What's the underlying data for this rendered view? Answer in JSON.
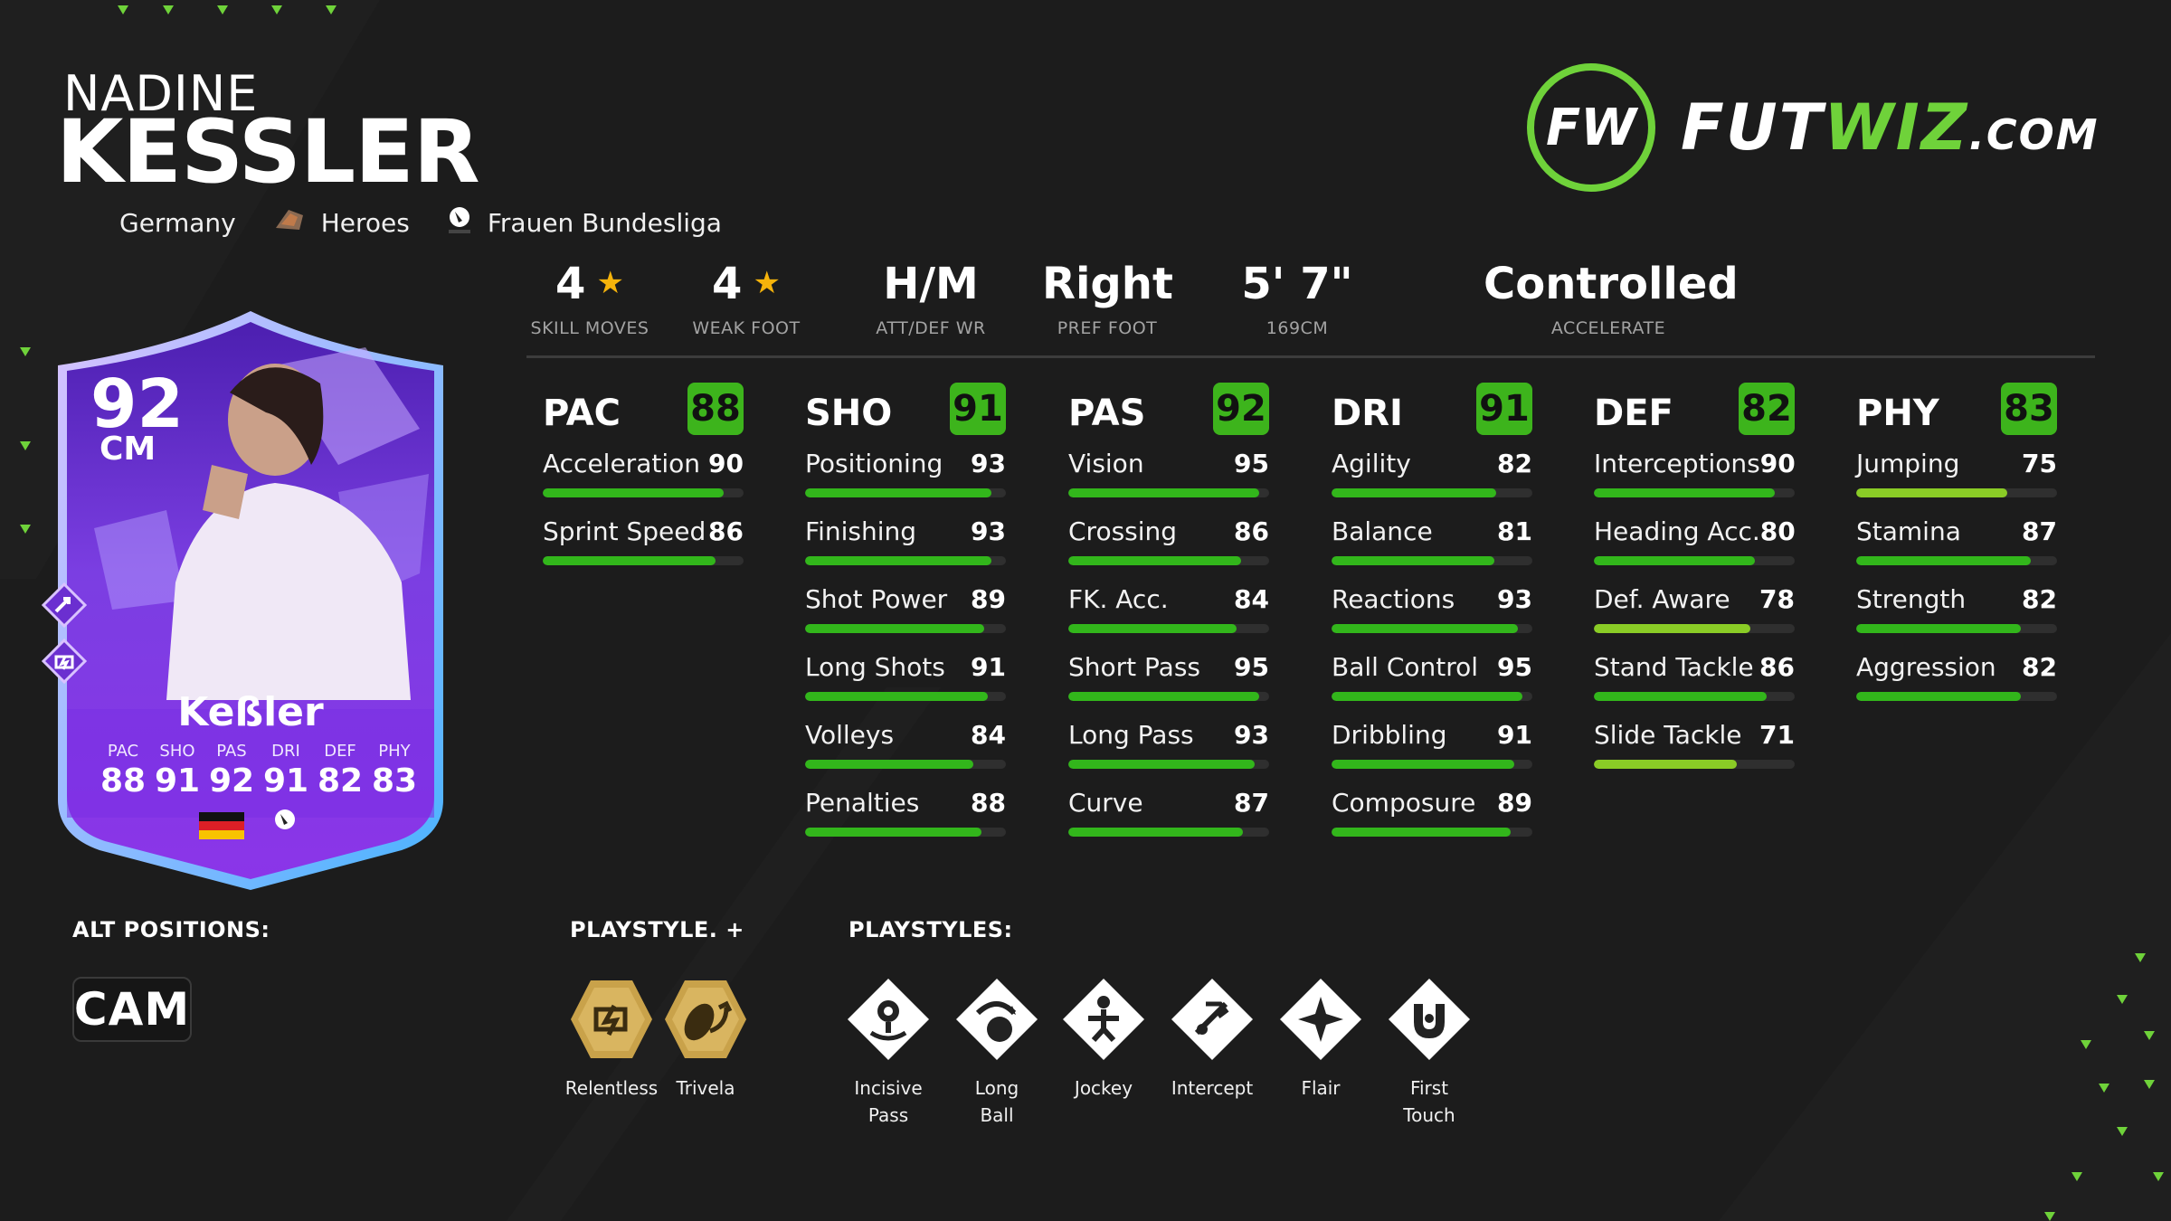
{
  "player": {
    "first_name": "NADINE",
    "last_name": "KESSLER",
    "nation": "Germany",
    "club": "Heroes",
    "league": "Frauen Bundesliga"
  },
  "logo": {
    "text_main": "FUT",
    "text_accent": "WIZ",
    "text_domain": ".COM",
    "badge": "FW"
  },
  "card": {
    "rating": "92",
    "position": "CM",
    "name": "Keßler",
    "stats": [
      {
        "label": "PAC",
        "value": "88"
      },
      {
        "label": "SHO",
        "value": "91"
      },
      {
        "label": "PAS",
        "value": "92"
      },
      {
        "label": "DRI",
        "value": "91"
      },
      {
        "label": "DEF",
        "value": "82"
      },
      {
        "label": "PHY",
        "value": "83"
      }
    ],
    "colors": {
      "card_primary": "#7a2ee0",
      "card_border": "#b48cff",
      "card_glow": "#4fa8ff"
    }
  },
  "attributes": [
    {
      "value": "4",
      "star": "★",
      "label": "SKILL MOVES"
    },
    {
      "value": "4",
      "star": "★",
      "label": "WEAK FOOT"
    },
    {
      "value": "H/M",
      "label": "ATT/DEF WR"
    },
    {
      "value": "Right",
      "label": "PREF FOOT"
    },
    {
      "value": "5' 7\"",
      "label": "169CM"
    },
    {
      "value": "Controlled",
      "label": "ACCELERATE"
    }
  ],
  "columns": [
    {
      "cat": "PAC",
      "rating": "88",
      "stats": [
        {
          "name": "Acceleration",
          "value": "90",
          "pct": 90
        },
        {
          "name": "Sprint Speed",
          "value": "86",
          "pct": 86
        }
      ]
    },
    {
      "cat": "SHO",
      "rating": "91",
      "stats": [
        {
          "name": "Positioning",
          "value": "93",
          "pct": 93
        },
        {
          "name": "Finishing",
          "value": "93",
          "pct": 93
        },
        {
          "name": "Shot Power",
          "value": "89",
          "pct": 89
        },
        {
          "name": "Long Shots",
          "value": "91",
          "pct": 91
        },
        {
          "name": "Volleys",
          "value": "84",
          "pct": 84
        },
        {
          "name": "Penalties",
          "value": "88",
          "pct": 88
        }
      ]
    },
    {
      "cat": "PAS",
      "rating": "92",
      "stats": [
        {
          "name": "Vision",
          "value": "95",
          "pct": 95
        },
        {
          "name": "Crossing",
          "value": "86",
          "pct": 86
        },
        {
          "name": "FK. Acc.",
          "value": "84",
          "pct": 84
        },
        {
          "name": "Short Pass",
          "value": "95",
          "pct": 95
        },
        {
          "name": "Long Pass",
          "value": "93",
          "pct": 93
        },
        {
          "name": "Curve",
          "value": "87",
          "pct": 87
        }
      ]
    },
    {
      "cat": "DRI",
      "rating": "91",
      "stats": [
        {
          "name": "Agility",
          "value": "82",
          "pct": 82
        },
        {
          "name": "Balance",
          "value": "81",
          "pct": 81
        },
        {
          "name": "Reactions",
          "value": "93",
          "pct": 93
        },
        {
          "name": "Ball Control",
          "value": "95",
          "pct": 95
        },
        {
          "name": "Dribbling",
          "value": "91",
          "pct": 91
        },
        {
          "name": "Composure",
          "value": "89",
          "pct": 89
        }
      ]
    },
    {
      "cat": "DEF",
      "rating": "82",
      "stats": [
        {
          "name": "Interceptions",
          "value": "90",
          "pct": 90
        },
        {
          "name": "Heading Acc.",
          "value": "80",
          "pct": 80
        },
        {
          "name": "Def. Aware",
          "value": "78",
          "pct": 78
        },
        {
          "name": "Stand Tackle",
          "value": "86",
          "pct": 86
        },
        {
          "name": "Slide Tackle",
          "value": "71",
          "pct": 71
        }
      ]
    },
    {
      "cat": "PHY",
      "rating": "83",
      "stats": [
        {
          "name": "Jumping",
          "value": "75",
          "pct": 75
        },
        {
          "name": "Stamina",
          "value": "87",
          "pct": 87
        },
        {
          "name": "Strength",
          "value": "82",
          "pct": 82
        },
        {
          "name": "Aggression",
          "value": "82",
          "pct": 82
        }
      ]
    }
  ],
  "bottom": {
    "alt_positions_label": "ALT POSITIONS:",
    "alt_positions": [
      "CAM"
    ],
    "playstyle_plus_label": "PLAYSTYLE. +",
    "playstyles_plus": [
      {
        "name": "Relentless",
        "icon": "relentless-icon"
      },
      {
        "name": "Trivela",
        "icon": "trivela-icon"
      }
    ],
    "playstyles_label": "PLAYSTYLES:",
    "playstyles": [
      {
        "line1": "Incisive",
        "line2": "Pass",
        "icon": "incisive-pass-icon"
      },
      {
        "line1": "Long",
        "line2": "Ball",
        "icon": "long-ball-icon"
      },
      {
        "line1": "Jockey",
        "line2": "",
        "icon": "jockey-icon"
      },
      {
        "line1": "Intercept",
        "line2": "",
        "icon": "intercept-icon"
      },
      {
        "line1": "Flair",
        "line2": "",
        "icon": "flair-icon"
      },
      {
        "line1": "First",
        "line2": "Touch",
        "icon": "first-touch-icon"
      }
    ]
  },
  "colors": {
    "accent": "#32b61b",
    "badge": "#3db41c",
    "gold": "#c9a24a",
    "bg": "#1c1c1c"
  }
}
